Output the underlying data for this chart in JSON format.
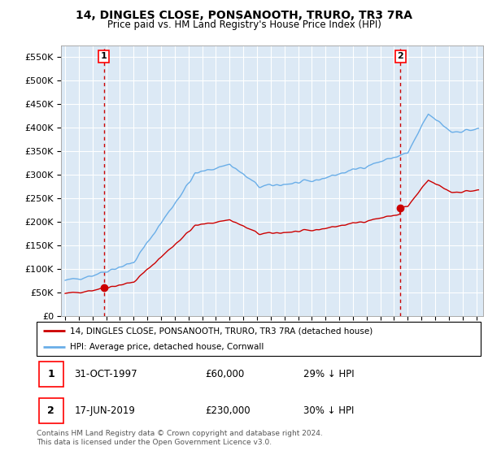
{
  "title": "14, DINGLES CLOSE, PONSANOOTH, TRURO, TR3 7RA",
  "subtitle": "Price paid vs. HM Land Registry's House Price Index (HPI)",
  "legend_line1": "14, DINGLES CLOSE, PONSANOOTH, TRURO, TR3 7RA (detached house)",
  "legend_line2": "HPI: Average price, detached house, Cornwall",
  "sale1_date": "31-OCT-1997",
  "sale1_price": "£60,000",
  "sale1_hpi": "29% ↓ HPI",
  "sale1_x": 1997.83,
  "sale1_y": 60000,
  "sale2_date": "17-JUN-2019",
  "sale2_price": "£230,000",
  "sale2_hpi": "30% ↓ HPI",
  "sale2_x": 2019.46,
  "sale2_y": 230000,
  "hpi_color": "#6aaee8",
  "sale_color": "#CC0000",
  "vline_color": "#CC0000",
  "background_color": "#ffffff",
  "plot_bg_color": "#dce9f5",
  "grid_color": "#ffffff",
  "footnote": "Contains HM Land Registry data © Crown copyright and database right 2024.\nThis data is licensed under the Open Government Licence v3.0.",
  "ylim": [
    0,
    575000
  ],
  "xlim_start": 1994.7,
  "xlim_end": 2025.5,
  "ytick_interval": 50000
}
